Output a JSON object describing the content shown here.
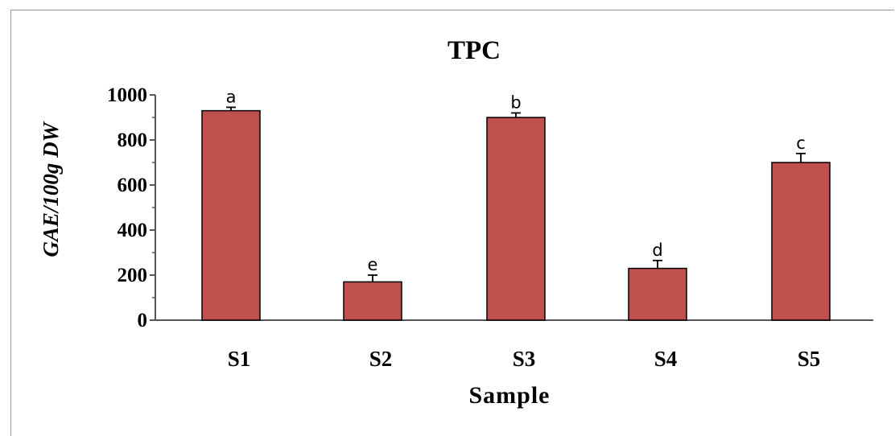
{
  "chart_data": {
    "type": "bar",
    "title": "TPC",
    "xlabel": "Sample",
    "ylabel": "GAE/100g DW",
    "categories": [
      "S1",
      "S2",
      "S3",
      "S4",
      "S5"
    ],
    "values": [
      930,
      170,
      900,
      230,
      700
    ],
    "errors": [
      15,
      30,
      20,
      35,
      40
    ],
    "letters": [
      "a",
      "e",
      "b",
      "d",
      "c"
    ],
    "ylim": [
      0,
      1000
    ],
    "yticks": [
      "0",
      "200",
      "400",
      "600",
      "800",
      "1000"
    ],
    "bar_color": "#c0504d",
    "grid": false,
    "legend": "none"
  }
}
